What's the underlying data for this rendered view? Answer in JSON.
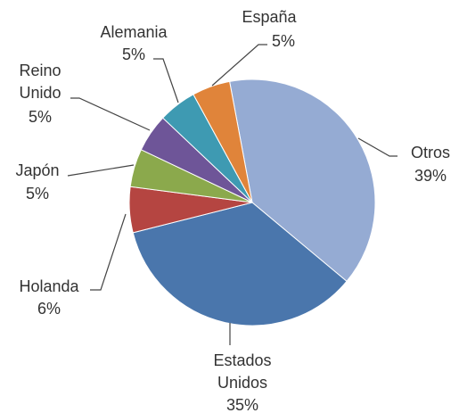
{
  "chart_data": {
    "type": "pie",
    "categories": [
      "Otros",
      "Estados Unidos",
      "Holanda",
      "Japón",
      "Reino Unido",
      "Alemania",
      "España"
    ],
    "values": [
      39,
      35,
      6,
      5,
      5,
      5,
      5
    ],
    "value_labels": [
      "39%",
      "35%",
      "6%",
      "5%",
      "5%",
      "5%",
      "5%"
    ],
    "colors": [
      "#95abd3",
      "#4a76ac",
      "#b54541",
      "#8ba94c",
      "#6e5598",
      "#3e9ab2",
      "#e0843a"
    ]
  }
}
